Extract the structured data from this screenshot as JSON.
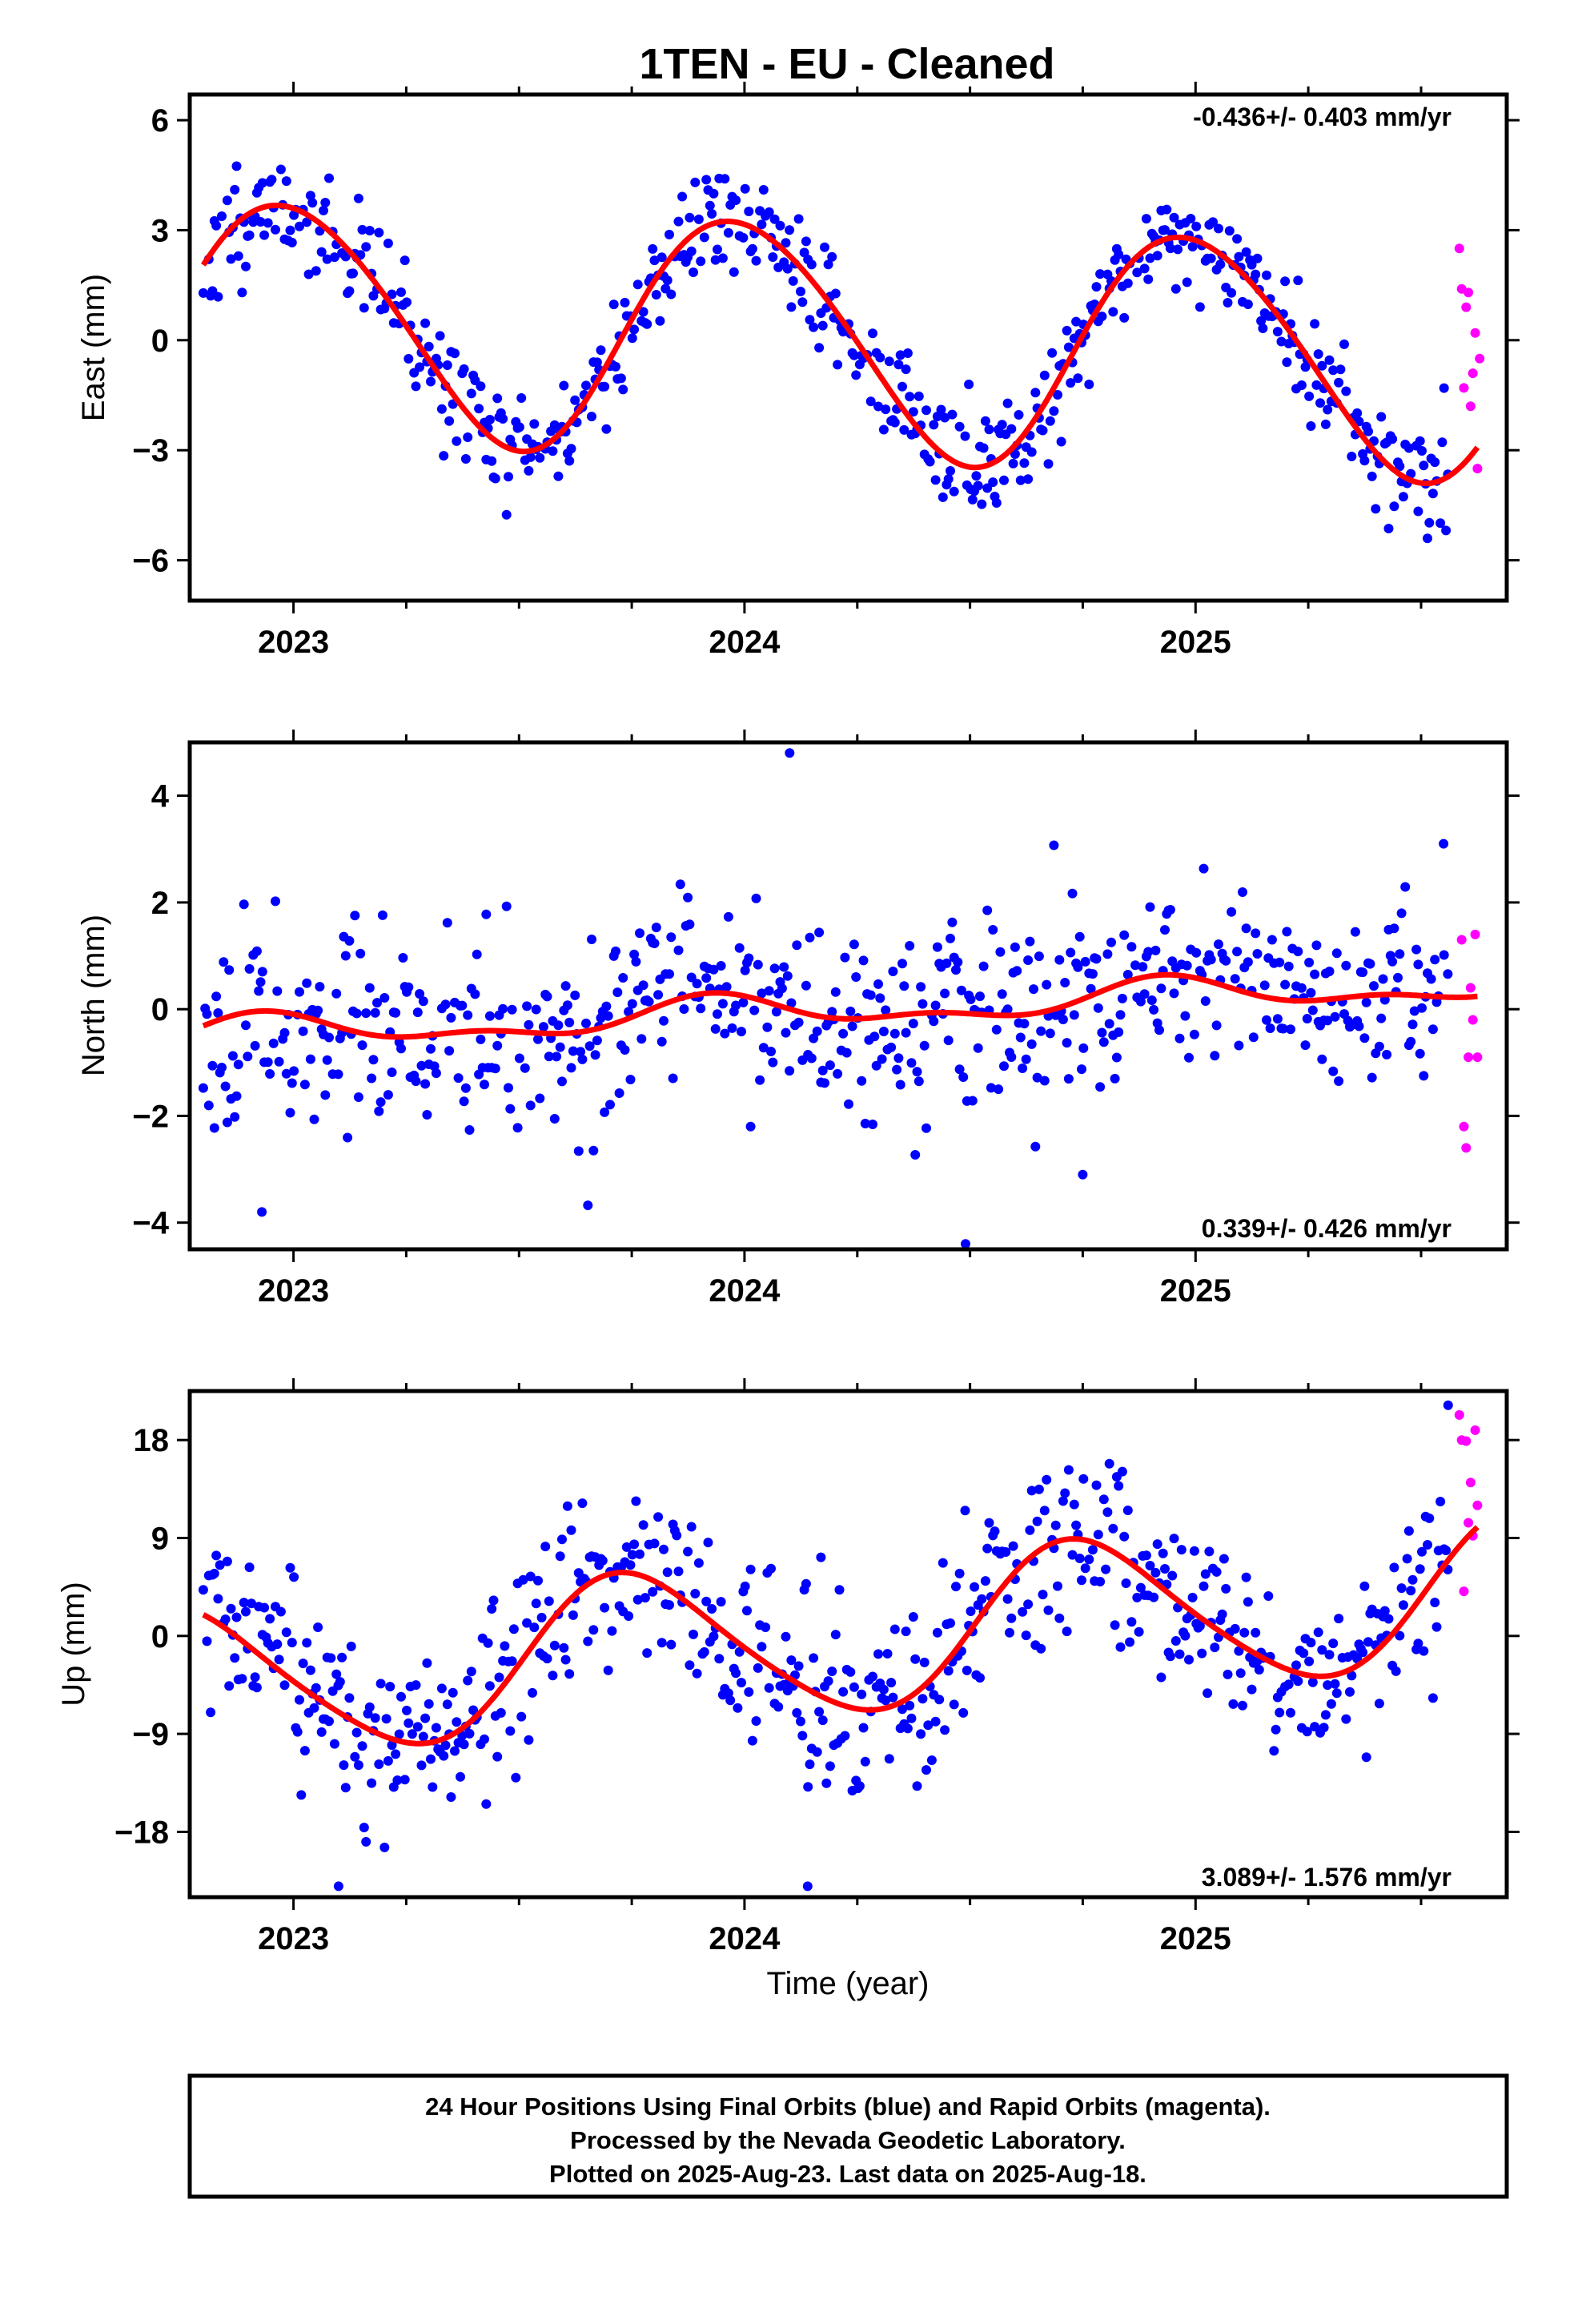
{
  "title": "1TEN  - EU - Cleaned",
  "colors": {
    "final": "#0000ff",
    "rapid": "#ff00ff",
    "fit": "#ff0000"
  },
  "chart_data": [
    {
      "type": "scatter",
      "ylabel": "East (mm)",
      "rate_text": "-0.436+/- 0.403 mm/yr",
      "xlim": [
        2022.77,
        2025.69
      ],
      "ylim": [
        -7.1,
        6.7
      ],
      "x_ticks": [
        2023,
        2024,
        2025
      ],
      "x_tick_labels": [
        "2023",
        "2024",
        "2025"
      ],
      "y_ticks": [
        -6,
        -3,
        0,
        3,
        6
      ],
      "y_tick_labels": [
        "−6",
        "−3",
        "0",
        "3",
        "6"
      ],
      "fit": {
        "offset": 0.0,
        "rate": -0.436,
        "t0": 2024.25,
        "sin1": -3.2,
        "cos1": -0.2,
        "sin2": 0.2,
        "cos2": 0.15
      },
      "final_orbits": {
        "start": 2022.8,
        "end": 2025.56,
        "step": 0.0041,
        "noise_sd": 0.8,
        "seed": 11
      },
      "rapid_orbits": [
        [
          2025.585,
          2.5
        ],
        [
          2025.59,
          1.4
        ],
        [
          2025.595,
          -1.3
        ],
        [
          2025.6,
          0.9
        ],
        [
          2025.605,
          1.3
        ],
        [
          2025.61,
          -1.8
        ],
        [
          2025.615,
          -0.9
        ],
        [
          2025.62,
          0.2
        ],
        [
          2025.625,
          -3.5
        ],
        [
          2025.63,
          -0.5
        ]
      ],
      "outliers": []
    },
    {
      "type": "scatter",
      "ylabel": "North (mm)",
      "rate_text": "0.339+/- 0.426 mm/yr",
      "xlim": [
        2022.77,
        2025.69
      ],
      "ylim": [
        -4.5,
        5.0
      ],
      "x_ticks": [
        2023,
        2024,
        2025
      ],
      "x_tick_labels": [
        "2023",
        "2024",
        "2025"
      ],
      "y_ticks": [
        -4,
        -2,
        0,
        2,
        4
      ],
      "y_tick_labels": [
        "−4",
        "−2",
        "0",
        "2",
        "4"
      ],
      "fit": {
        "offset": 0.0,
        "rate": 0.339,
        "t0": 2024.25,
        "sin1": -0.25,
        "cos1": -0.1,
        "sin2": 0.12,
        "cos2": -0.08
      },
      "final_orbits": {
        "start": 2022.8,
        "end": 2025.56,
        "step": 0.0041,
        "noise_sd": 0.9,
        "seed": 23
      },
      "rapid_orbits": [
        [
          2025.59,
          1.3
        ],
        [
          2025.595,
          -2.2
        ],
        [
          2025.6,
          -2.6
        ],
        [
          2025.605,
          -0.9
        ],
        [
          2025.61,
          0.4
        ],
        [
          2025.615,
          -0.2
        ],
        [
          2025.62,
          1.4
        ],
        [
          2025.625,
          -0.9
        ]
      ],
      "outliers": [
        [
          2024.1,
          4.8
        ],
        [
          2024.49,
          -4.4
        ],
        [
          2025.55,
          3.1
        ],
        [
          2022.93,
          -3.8
        ],
        [
          2024.75,
          -3.1
        ]
      ]
    },
    {
      "type": "scatter",
      "ylabel": "Up (mm)",
      "xlabel": "Time (year)",
      "rate_text": "3.089+/- 1.576 mm/yr",
      "xlim": [
        2022.77,
        2025.69
      ],
      "ylim": [
        -24.0,
        22.5
      ],
      "x_ticks": [
        2023,
        2024,
        2025
      ],
      "x_tick_labels": [
        "2023",
        "2024",
        "2025"
      ],
      "y_ticks": [
        -18,
        -9,
        0,
        9,
        18
      ],
      "y_tick_labels": [
        "−18",
        "−9",
        "0",
        "9",
        "18"
      ],
      "fit": {
        "offset": 0.0,
        "rate": 3.089,
        "t0": 2024.25,
        "sin1": 0.0,
        "cos1": -7.0,
        "sin2": -0.8,
        "cos2": 0.3
      },
      "final_orbits": {
        "start": 2022.8,
        "end": 2025.56,
        "step": 0.0041,
        "noise_sd": 4.2,
        "seed": 37
      },
      "rapid_orbits": [
        [
          2025.585,
          20.3
        ],
        [
          2025.59,
          18.0
        ],
        [
          2025.595,
          4.1
        ],
        [
          2025.6,
          17.9
        ],
        [
          2025.605,
          10.4
        ],
        [
          2025.61,
          14.1
        ],
        [
          2025.615,
          9.2
        ],
        [
          2025.62,
          18.9
        ],
        [
          2025.625,
          12.0
        ]
      ],
      "outliers": [
        [
          2024.14,
          -23.0
        ],
        [
          2023.1,
          -23.0
        ],
        [
          2025.56,
          21.2
        ]
      ]
    }
  ],
  "footer": {
    "line1": "24 Hour Positions Using Final Orbits (blue) and Rapid Orbits (magenta).",
    "line2": "Processed by the Nevada Geodetic Laboratory.",
    "line3": "Plotted on 2025-Aug-23. Last data on 2025-Aug-18."
  }
}
